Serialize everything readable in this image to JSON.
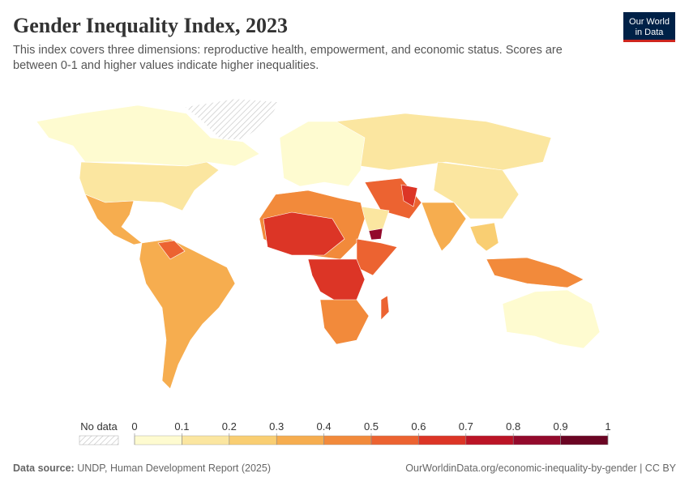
{
  "header": {
    "title": "Gender Inequality Index, 2023",
    "subtitle": [
      "This index covers three dimensions: reproductive health, empowerment, and economic status. Scores are",
      "between 0-1 and higher values indicate higher inequalities."
    ],
    "logo": [
      "Our World",
      "in Data"
    ]
  },
  "legend": {
    "no_data": "No data",
    "ticks": [
      0,
      0.1,
      0.2,
      0.3,
      0.4,
      0.5,
      0.6,
      0.7,
      0.8,
      0.9,
      1
    ],
    "colors": [
      "#fefbd0",
      "#fbe6a0",
      "#f9ce72",
      "#f6ad4f",
      "#f28a3b",
      "#ec6331",
      "#dc3526",
      "#bb1426",
      "#930a2c",
      "#6b0523"
    ]
  },
  "footer": {
    "source_label": "Data source:",
    "source": "UNDP, Human Development Report (2025)",
    "url": "OurWorldinData.org/economic-inequality-by-gender | CC BY"
  }
}
